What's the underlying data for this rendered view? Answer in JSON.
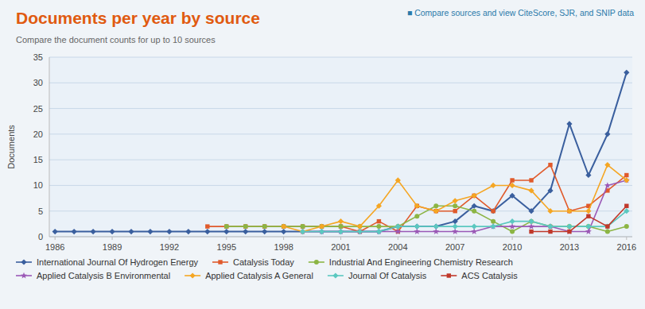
{
  "chart_data": {
    "type": "line",
    "title": "Documents per year by source",
    "subtitle": "Compare the document counts for up to 10 sources",
    "annotation": "■  Compare sources and view CiteScore, SJR, and SNIP data",
    "y_label": "Documents",
    "x": [
      1986,
      1987,
      1988,
      1989,
      1990,
      1991,
      1992,
      1993,
      1994,
      1995,
      1996,
      1997,
      1998,
      1999,
      2000,
      2001,
      2002,
      2003,
      2004,
      2005,
      2006,
      2007,
      2008,
      2009,
      2010,
      2011,
      2012,
      2013,
      2014,
      2015,
      2016
    ],
    "xlim": [
      1985.7,
      2016.3
    ],
    "xticks": [
      1986,
      1989,
      1992,
      1995,
      1998,
      2001,
      2004,
      2007,
      2010,
      2013,
      2016
    ],
    "ylim": [
      0,
      35
    ],
    "yticks": [
      0,
      5,
      10,
      15,
      20,
      25,
      30,
      35
    ],
    "grid": true,
    "legend": "bottom",
    "series": [
      {
        "name": "International Journal Of Hydrogen Energy",
        "color": "#3a5f9e",
        "marker": "diamond",
        "values": [
          1,
          1,
          1,
          1,
          1,
          1,
          1,
          1,
          1,
          1,
          1,
          1,
          1,
          1,
          1,
          1,
          1,
          1,
          2,
          2,
          2,
          3,
          6,
          5,
          8,
          5,
          9,
          22,
          12,
          20,
          32
        ]
      },
      {
        "name": "Catalysis Today",
        "color": "#e05a2b",
        "marker": "square",
        "values": [
          null,
          null,
          null,
          null,
          null,
          null,
          null,
          null,
          2,
          2,
          2,
          2,
          2,
          2,
          2,
          2,
          1,
          3,
          1,
          6,
          5,
          5,
          8,
          5,
          11,
          11,
          14,
          5,
          6,
          9,
          12
        ]
      },
      {
        "name": "Industrial And Engineering Chemistry Research",
        "color": "#8cb544",
        "marker": "circle",
        "values": [
          null,
          null,
          null,
          null,
          null,
          null,
          null,
          null,
          null,
          2,
          2,
          2,
          2,
          2,
          2,
          2,
          2,
          2,
          2,
          4,
          6,
          6,
          5,
          3,
          1,
          3,
          2,
          2,
          2,
          1,
          2
        ]
      },
      {
        "name": "Applied Catalysis B Environmental",
        "color": "#9b59b6",
        "marker": "star",
        "values": [
          null,
          null,
          null,
          null,
          null,
          null,
          null,
          null,
          null,
          null,
          null,
          null,
          null,
          1,
          1,
          1,
          1,
          1,
          1,
          1,
          1,
          1,
          1,
          2,
          2,
          2,
          2,
          1,
          1,
          10,
          11
        ]
      },
      {
        "name": "Applied Catalysis A General",
        "color": "#f5a623",
        "marker": "diamond",
        "values": [
          null,
          null,
          null,
          null,
          null,
          null,
          null,
          null,
          null,
          null,
          null,
          null,
          2,
          1,
          2,
          3,
          2,
          6,
          11,
          6,
          5,
          7,
          8,
          10,
          10,
          9,
          5,
          5,
          5,
          14,
          11
        ]
      },
      {
        "name": "Journal Of Catalysis",
        "color": "#5bc8c0",
        "marker": "diamond",
        "values": [
          null,
          null,
          null,
          null,
          null,
          null,
          null,
          null,
          null,
          null,
          null,
          null,
          null,
          1,
          1,
          1,
          1,
          1,
          2,
          2,
          2,
          2,
          2,
          2,
          3,
          3,
          2,
          2,
          2,
          2,
          5
        ]
      },
      {
        "name": "ACS Catalysis",
        "color": "#c0392b",
        "marker": "square",
        "values": [
          null,
          null,
          null,
          null,
          null,
          null,
          null,
          null,
          null,
          null,
          null,
          null,
          null,
          null,
          null,
          null,
          null,
          null,
          null,
          null,
          null,
          null,
          null,
          null,
          null,
          1,
          1,
          1,
          4,
          2,
          6
        ]
      }
    ]
  }
}
